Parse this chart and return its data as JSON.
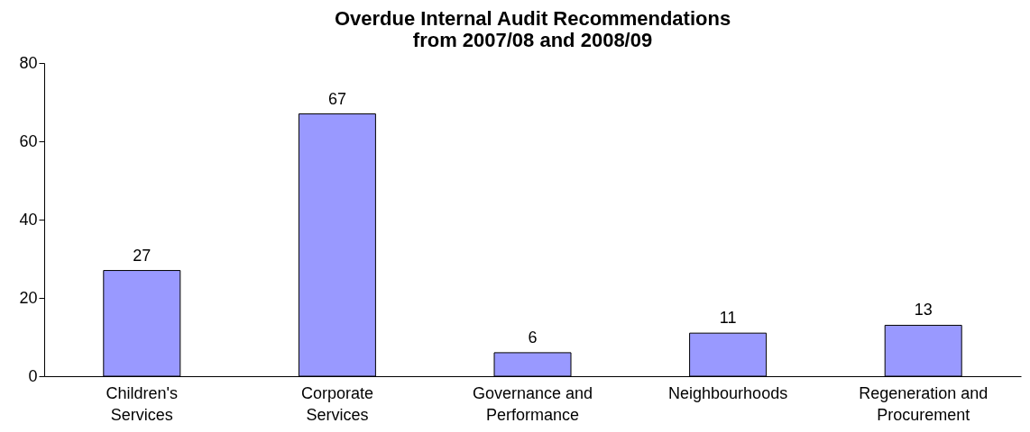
{
  "chart_data": {
    "type": "bar",
    "title": "Overdue Internal Audit Recommendations\nfrom 2007/08 and 2008/09",
    "categories": [
      "Children's Services",
      "Corporate Services",
      "Governance and Performance",
      "Neighbourhoods",
      "Regeneration and Procurement"
    ],
    "values": [
      27,
      67,
      6,
      11,
      13
    ],
    "color": "#9999ff",
    "ylim": [
      0,
      80
    ],
    "yticks": [
      0,
      20,
      40,
      60,
      80
    ],
    "grid": false,
    "data_labels": true
  }
}
